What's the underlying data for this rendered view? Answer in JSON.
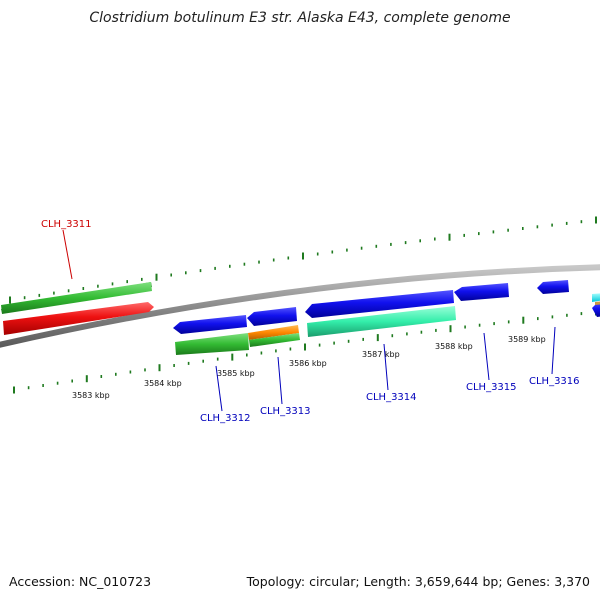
{
  "title": "Clostridium botulinum E3 str. Alaska E43, complete genome",
  "footer": {
    "accession": "Accession: NC_010723",
    "summary": "Topology: circular; Length: 3,659,644 bp; Genes: 3,370"
  },
  "axis_labels": [
    "3583 kbp",
    "3584 kbp",
    "3585 kbp",
    "3586 kbp",
    "3587 kbp",
    "3588 kbp",
    "3589 kbp"
  ],
  "gene_labels": [
    "CLH_3311",
    "CLH_3312",
    "CLH_3313",
    "CLH_3314",
    "CLH_3315",
    "CLH_3316"
  ],
  "colors": {
    "backbone": "#8c8c8c",
    "tick": "#1f7a1f",
    "gene_forward": "#ee1111",
    "gene_reverse": "#1515e0",
    "cds_green": "#33bb33",
    "cds_orange": "#ff8800",
    "cds_teal": "#33eeaa",
    "label_red": "#cc0000",
    "label_blue": "#0000bb"
  }
}
